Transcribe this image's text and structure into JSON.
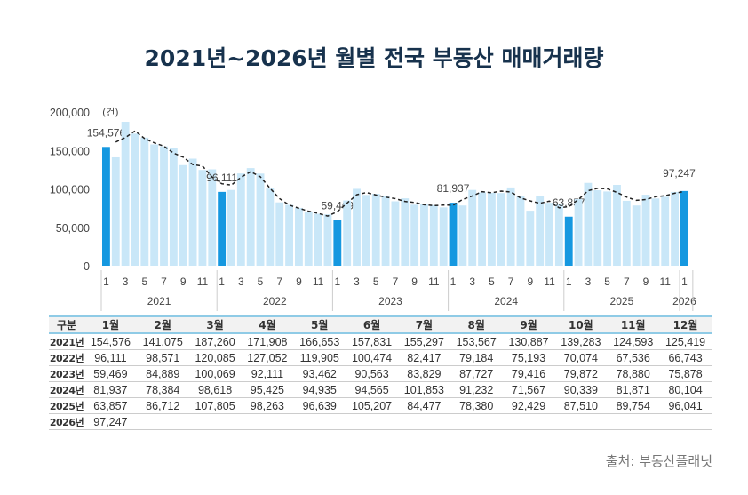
{
  "title": "2021년~2026년 월별 전국 부동산 매매거래량",
  "source": "출처: 부동산플래닛",
  "chart_data": {
    "type": "bar",
    "title": "2021년~2026년 월별 전국 부동산 매매거래량",
    "ylabel": "(건)",
    "ylim": [
      0,
      200000
    ],
    "yticks": [
      "0",
      "50,000",
      "100,000",
      "150,000",
      "200,000"
    ],
    "ytick_values": [
      0,
      50000,
      100000,
      150000,
      200000
    ],
    "years": [
      "2021",
      "2022",
      "2023",
      "2024",
      "2025",
      "2026"
    ],
    "month_ticks": [
      "1",
      "3",
      "5",
      "7",
      "9",
      "11"
    ],
    "colors": {
      "bar": "#c9e7f8",
      "highlight": "#1598e0",
      "trend": "#222222"
    },
    "trendline": "dashed moving average",
    "annotations": [
      "154,576",
      "96,111",
      "59,469",
      "81,937",
      "63,857",
      "97,247"
    ],
    "series": [
      {
        "year": "2021",
        "values": [
          154576,
          141075,
          187260,
          171908,
          166653,
          157831,
          155297,
          153567,
          130887,
          139283,
          124593,
          125419
        ]
      },
      {
        "year": "2022",
        "values": [
          96111,
          98571,
          120085,
          127052,
          119905,
          100474,
          82417,
          79184,
          75193,
          70074,
          67536,
          66743
        ]
      },
      {
        "year": "2023",
        "values": [
          59469,
          84889,
          100069,
          92111,
          93462,
          90563,
          83829,
          87727,
          79416,
          79872,
          78880,
          75878
        ]
      },
      {
        "year": "2024",
        "values": [
          81937,
          78384,
          98618,
          95425,
          94935,
          94565,
          101853,
          91232,
          71567,
          90339,
          81871,
          80104
        ]
      },
      {
        "year": "2025",
        "values": [
          63857,
          86712,
          107805,
          98263,
          96639,
          105207,
          84477,
          78380,
          92429,
          87510,
          89754,
          96041
        ]
      },
      {
        "year": "2026",
        "values": [
          97247
        ]
      }
    ]
  },
  "table": {
    "header": [
      "구분",
      "1월",
      "2월",
      "3월",
      "4월",
      "5월",
      "6월",
      "7월",
      "8월",
      "9월",
      "10월",
      "11월",
      "12월"
    ],
    "rows": [
      [
        "2021년",
        "154,576",
        "141,075",
        "187,260",
        "171,908",
        "166,653",
        "157,831",
        "155,297",
        "153,567",
        "130,887",
        "139,283",
        "124,593",
        "125,419"
      ],
      [
        "2022년",
        "96,111",
        "98,571",
        "120,085",
        "127,052",
        "119,905",
        "100,474",
        "82,417",
        "79,184",
        "75,193",
        "70,074",
        "67,536",
        "66,743"
      ],
      [
        "2023년",
        "59,469",
        "84,889",
        "100,069",
        "92,111",
        "93,462",
        "90,563",
        "83,829",
        "87,727",
        "79,416",
        "79,872",
        "78,880",
        "75,878"
      ],
      [
        "2024년",
        "81,937",
        "78,384",
        "98,618",
        "95,425",
        "94,935",
        "94,565",
        "101,853",
        "91,232",
        "71,567",
        "90,339",
        "81,871",
        "80,104"
      ],
      [
        "2025년",
        "63,857",
        "86,712",
        "107,805",
        "98,263",
        "96,639",
        "105,207",
        "84,477",
        "78,380",
        "92,429",
        "87,510",
        "89,754",
        "96,041"
      ],
      [
        "2026년",
        "97,247",
        "",
        "",
        "",
        "",
        "",
        "",
        "",
        "",
        "",
        "",
        ""
      ]
    ]
  }
}
